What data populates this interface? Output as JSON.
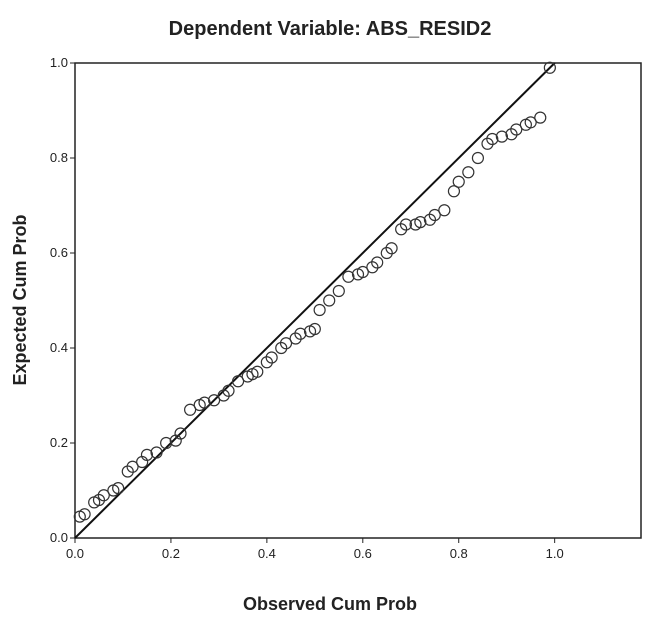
{
  "chart_data": {
    "type": "scatter",
    "title": "Dependent Variable: ABS_RESID2",
    "xlabel": "Observed Cum Prob",
    "ylabel": "Expected Cum Prob",
    "xlim": [
      0,
      1.18
    ],
    "ylim": [
      0,
      1
    ],
    "xticks": [
      {
        "value": 0,
        "label": "0.0"
      },
      0.2,
      0.4,
      0.6,
      0.8,
      {
        "value": 1,
        "label": "1.0"
      }
    ],
    "yticks": [
      {
        "value": 0,
        "label": "0.0"
      },
      0.2,
      0.4,
      0.6,
      0.8,
      {
        "value": 1,
        "label": "1.0"
      }
    ],
    "color": "#333333",
    "diagonal": {
      "x": [
        0,
        1
      ],
      "y": [
        0,
        1
      ]
    },
    "x": [
      0.01,
      0.02,
      0.04,
      0.05,
      0.06,
      0.08,
      0.09,
      0.11,
      0.12,
      0.14,
      0.15,
      0.17,
      0.19,
      0.21,
      0.22,
      0.24,
      0.26,
      0.27,
      0.29,
      0.31,
      0.32,
      0.34,
      0.36,
      0.37,
      0.38,
      0.4,
      0.41,
      0.43,
      0.44,
      0.46,
      0.47,
      0.49,
      0.5,
      0.51,
      0.53,
      0.55,
      0.57,
      0.59,
      0.6,
      0.62,
      0.63,
      0.65,
      0.66,
      0.68,
      0.69,
      0.71,
      0.72,
      0.74,
      0.75,
      0.77,
      0.79,
      0.8,
      0.82,
      0.84,
      0.86,
      0.87,
      0.89,
      0.91,
      0.92,
      0.94,
      0.95,
      0.97,
      0.99
    ],
    "values": [
      0.045,
      0.05,
      0.075,
      0.08,
      0.09,
      0.1,
      0.105,
      0.14,
      0.15,
      0.16,
      0.175,
      0.18,
      0.2,
      0.205,
      0.22,
      0.27,
      0.28,
      0.285,
      0.29,
      0.3,
      0.31,
      0.33,
      0.34,
      0.345,
      0.35,
      0.37,
      0.38,
      0.4,
      0.41,
      0.42,
      0.43,
      0.435,
      0.44,
      0.48,
      0.5,
      0.52,
      0.55,
      0.555,
      0.56,
      0.57,
      0.58,
      0.6,
      0.61,
      0.65,
      0.66,
      0.66,
      0.665,
      0.67,
      0.68,
      0.69,
      0.73,
      0.75,
      0.77,
      0.8,
      0.83,
      0.84,
      0.845,
      0.85,
      0.86,
      0.87,
      0.875,
      0.885,
      0.99
    ]
  }
}
